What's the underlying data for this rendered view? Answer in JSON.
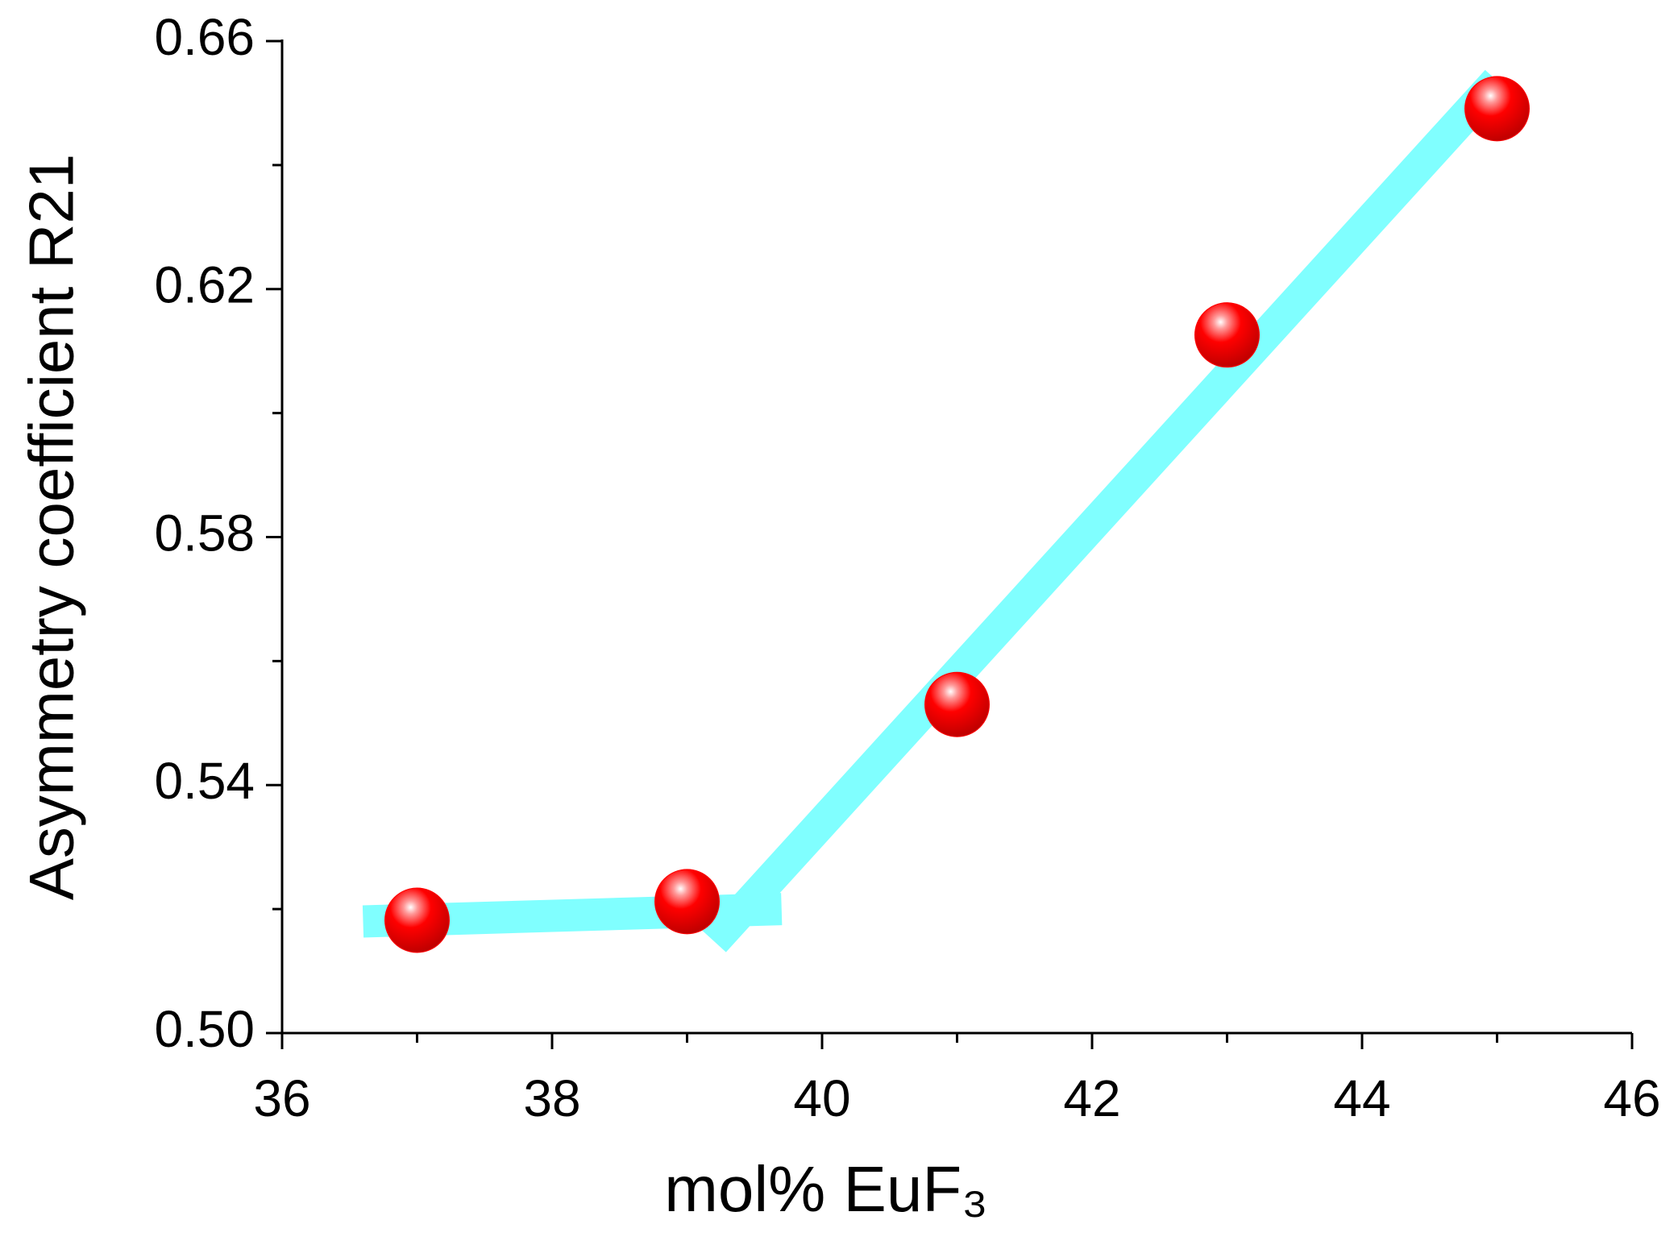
{
  "chart_data": {
    "type": "scatter",
    "xlabel": "mol% EuF₃",
    "ylabel": "Asymmetry coefficient R21",
    "xlim": [
      36,
      46
    ],
    "xticks": [
      36,
      38,
      40,
      42,
      44,
      46
    ],
    "xminorticks": [
      37,
      39,
      41,
      43,
      45
    ],
    "ylim": [
      0.5,
      0.66
    ],
    "yticks": [
      {
        "value": 0.5,
        "label": "0.50"
      },
      0.54,
      0.58,
      0.62,
      0.66
    ],
    "yminorticks": [
      0.52,
      0.56,
      0.6,
      0.64
    ],
    "series": [
      {
        "color": "#ff0000",
        "x": [
          37,
          39,
          41,
          43,
          45
        ],
        "values": [
          0.5182,
          0.5212,
          0.553,
          0.6126,
          0.6491
        ]
      }
    ],
    "fit_lines": [
      {
        "color": "#80ffff",
        "x": [
          36.6,
          39.7
        ],
        "values": [
          0.518,
          0.52
        ]
      },
      {
        "color": "#80ffff",
        "x": [
          39.2,
          45.0
        ],
        "values": [
          0.5148,
          0.6536
        ]
      }
    ]
  }
}
